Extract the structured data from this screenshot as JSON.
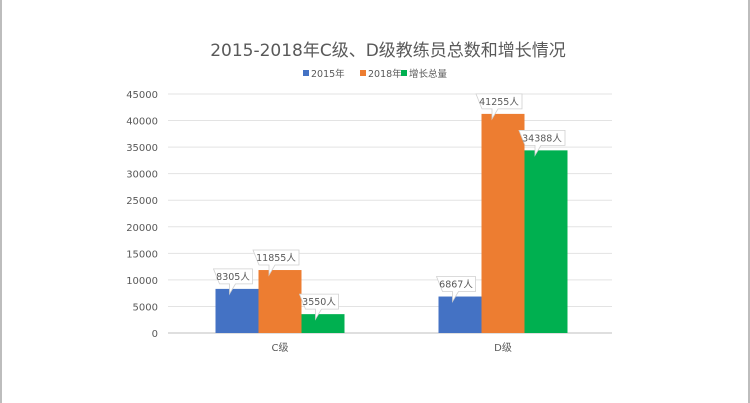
{
  "chart_data": {
    "type": "bar",
    "title": "2015-2018年C级、D级教练员总数和增长情况",
    "categories": [
      "C级",
      "D级"
    ],
    "series": [
      {
        "name": "2015年",
        "color": "#4472C4",
        "values": [
          8305,
          6867
        ],
        "labels": [
          "8305人",
          "6867人"
        ]
      },
      {
        "name": "2018年",
        "color": "#ED7D31",
        "values": [
          11855,
          41255
        ],
        "labels": [
          "11855人",
          "41255人"
        ]
      },
      {
        "name": "增长总量",
        "color": "#00B050",
        "values": [
          3550,
          34388
        ],
        "labels": [
          "3550人",
          "34388人"
        ]
      }
    ],
    "ylim": [
      0,
      45000
    ],
    "yticks": [
      "0",
      "5000",
      "10000",
      "15000",
      "20000",
      "25000",
      "30000",
      "35000",
      "40000",
      "45000"
    ],
    "grid": true,
    "legend": "top"
  }
}
